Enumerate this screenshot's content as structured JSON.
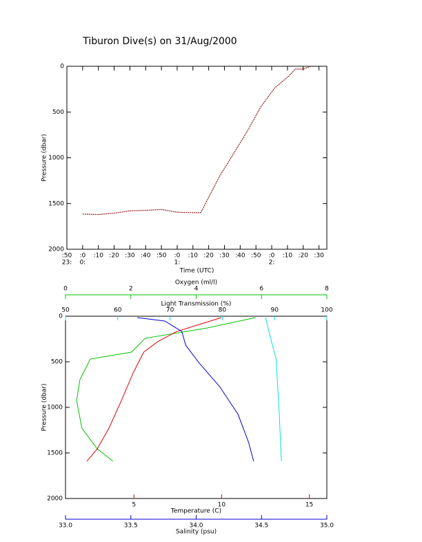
{
  "chart_data": [
    {
      "type": "line",
      "title": "Tiburon Dive(s) on 31/Aug/2000",
      "xlabel": "Time (UTC)",
      "ylabel": "Pressure (dbar)",
      "ylim": [
        2000,
        0
      ],
      "yticks": [
        0,
        500,
        1000,
        1500,
        2000
      ],
      "xlim": [
        -10,
        155
      ],
      "xticks": [
        {
          "value": -10,
          "label": ":50"
        },
        {
          "value": 0,
          "label": ":0"
        },
        {
          "value": 10,
          "label": ":10"
        },
        {
          "value": 20,
          "label": ":20"
        },
        {
          "value": 30,
          "label": ":30"
        },
        {
          "value": 40,
          "label": ":40"
        },
        {
          "value": 50,
          "label": ":50"
        },
        {
          "value": 60,
          "label": ":0"
        },
        {
          "value": 70,
          "label": ":10"
        },
        {
          "value": 80,
          "label": ":20"
        },
        {
          "value": 90,
          "label": ":30"
        },
        {
          "value": 100,
          "label": ":40"
        },
        {
          "value": 110,
          "label": ":50"
        },
        {
          "value": 120,
          "label": ":0"
        },
        {
          "value": 130,
          "label": ":10"
        },
        {
          "value": 140,
          "label": ":20"
        },
        {
          "value": 150,
          "label": ":30"
        }
      ],
      "xticks_hours": [
        {
          "value": -10,
          "label": "23:"
        },
        {
          "value": 0,
          "label": "0:"
        },
        {
          "value": 60,
          "label": "1:"
        },
        {
          "value": 120,
          "label": "2:"
        }
      ],
      "color": "#8b1a1a",
      "x": [
        0,
        10,
        20,
        30,
        40,
        50,
        60,
        70,
        75,
        79,
        87,
        96,
        105,
        113,
        122,
        131,
        135,
        140,
        145
      ],
      "values": [
        1615,
        1620,
        1605,
        1580,
        1575,
        1565,
        1595,
        1600,
        1600,
        1465,
        1200,
        950,
        695,
        445,
        235,
        105,
        30,
        30,
        0
      ]
    },
    {
      "type": "profile",
      "ylabel": "Pressure (dbar)",
      "ylim": [
        2000,
        0
      ],
      "yticks": [
        0,
        500,
        1000,
        1500,
        2000
      ],
      "axes": [
        {
          "label": "Oxygen (ml/l)",
          "color": "#00c000",
          "position": "top-outer",
          "lim": [
            0,
            8
          ],
          "ticks": [
            0,
            2,
            4,
            6,
            8
          ]
        },
        {
          "label": "Light Transmission (%)",
          "color": "#00e0e0",
          "position": "top",
          "lim": [
            50,
            100
          ],
          "ticks": [
            50,
            60,
            70,
            80,
            90,
            100
          ]
        },
        {
          "label": "Temperature (C)",
          "color": "#e00000",
          "position": "bottom",
          "lim": [
            1.1,
            16
          ],
          "ticks": [
            5,
            10,
            15
          ]
        },
        {
          "label": "Salinity (psu)",
          "color": "#0000d0",
          "position": "bottom-outer",
          "lim": [
            33,
            35
          ],
          "ticks": [
            {
              "value": 33,
              "label": "33.0"
            },
            33.5,
            {
              "value": 34,
              "label": "34.0"
            },
            34.5,
            {
              "value": 35,
              "label": "35.0"
            }
          ]
        }
      ],
      "series": [
        {
          "axis": 0,
          "color": "#00c000",
          "values": [
            5.81,
            4.34,
            2.44,
            2.02,
            0.76,
            0.44,
            0.34,
            0.5,
            0.97,
            1.45
          ],
          "pressure": [
            15,
            129,
            242,
            394,
            470,
            697,
            924,
            1227,
            1455,
            1591
          ]
        },
        {
          "axis": 1,
          "color": "#00e0e0",
          "values": [
            88.3,
            88.9,
            90.3,
            90.9,
            91.3
          ],
          "pressure": [
            15,
            167,
            470,
            1076,
            1591
          ]
        },
        {
          "axis": 2,
          "color": "#e00000",
          "values": [
            9.98,
            8.72,
            7.45,
            6.35,
            5.56,
            4.96,
            4.29,
            3.58,
            2.91,
            2.32
          ],
          "pressure": [
            15,
            91,
            167,
            280,
            394,
            621,
            924,
            1227,
            1455,
            1591
          ]
        },
        {
          "axis": 3,
          "color": "#0000d0",
          "values": [
            33.55,
            33.76,
            33.89,
            33.92,
            34.02,
            34.18,
            34.32,
            34.4,
            34.44
          ],
          "pressure": [
            15,
            53,
            167,
            318,
            508,
            773,
            1076,
            1379,
            1591
          ]
        }
      ]
    }
  ]
}
